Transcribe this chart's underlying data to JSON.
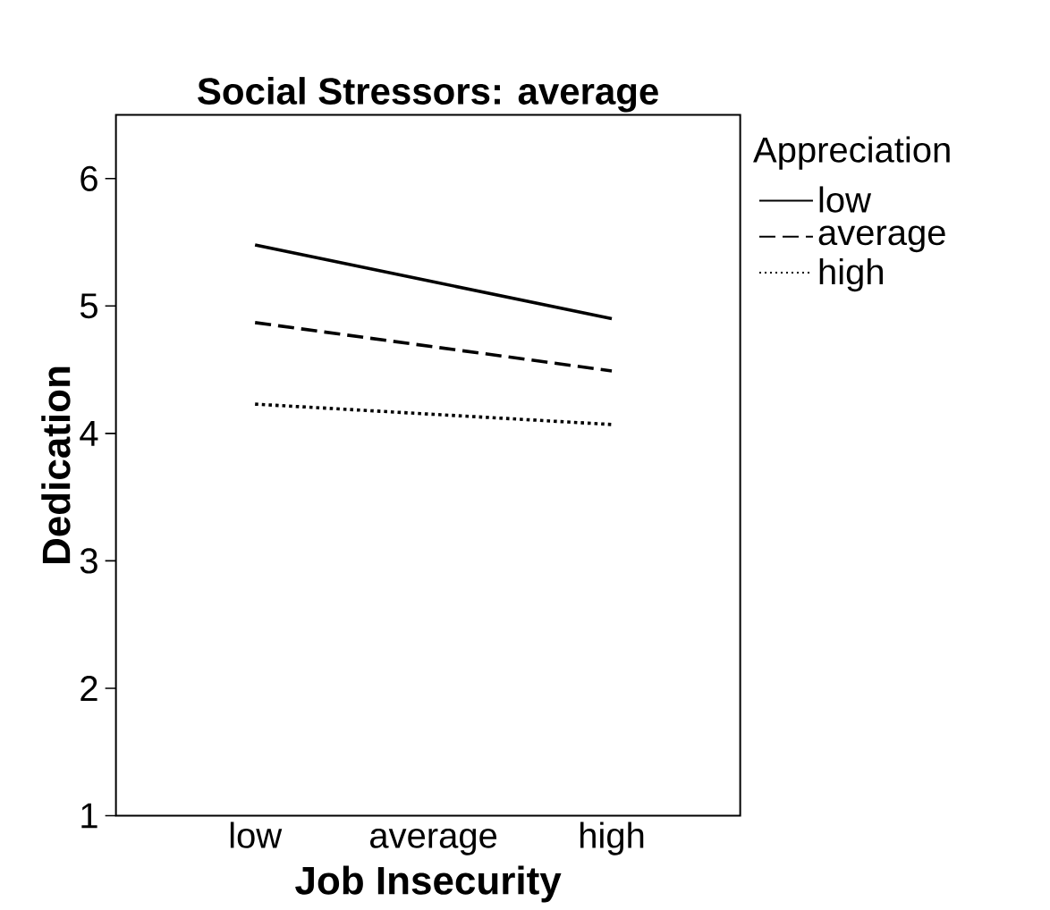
{
  "chart_data": {
    "type": "line",
    "title": "Social Stressors: average",
    "xlabel": "Job Insecurity",
    "ylabel": "Dedication",
    "legend_title": "Appreciation",
    "categories": [
      "low",
      "average",
      "high"
    ],
    "series": [
      {
        "name": "low",
        "color": "#000000",
        "line_style": "solid",
        "values": [
          5.48,
          5.19,
          4.9
        ]
      },
      {
        "name": "average",
        "color": "#000000",
        "line_style": "dashed",
        "values": [
          4.87,
          4.68,
          4.49
        ]
      },
      {
        "name": "high",
        "color": "#000000",
        "line_style": "dotted",
        "values": [
          4.23,
          4.15,
          4.07
        ]
      }
    ],
    "ylim": [
      1,
      6.5
    ],
    "yticks": [
      1,
      2,
      3,
      4,
      5,
      6
    ],
    "grid": false,
    "legend": "top right",
    "marker": "none"
  }
}
